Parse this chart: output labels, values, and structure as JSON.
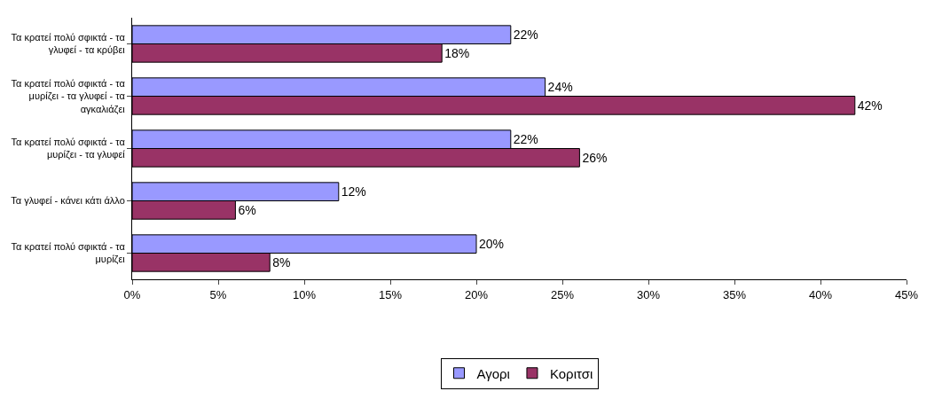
{
  "chart_data": {
    "type": "bar",
    "orientation": "horizontal",
    "categories": [
      "Τα κρατεί πολύ σφικτά - τα γλυφεί - τα κρύβει",
      "Τα κρατεί πολύ σφικτά - τα μυρίζει - τα γλυφεί - τα αγκαλιάζει",
      "Τα κρατεί πολύ σφικτά - τα μυρίζει - τα γλυφεί",
      "Τα γλυφεί - κάνει κάτι άλλο",
      "Τα κρατεί πολύ σφικτά - τα μυρίζει"
    ],
    "series": [
      {
        "name": "Αγορι",
        "color": "#9999ff",
        "values": [
          22,
          24,
          22,
          12,
          20
        ],
        "value_labels": [
          "22%",
          "24%",
          "22%",
          "12%",
          "20%"
        ]
      },
      {
        "name": "Κοριτσι",
        "color": "#993366",
        "values": [
          18,
          42,
          26,
          6,
          8
        ],
        "value_labels": [
          "18%",
          "42%",
          "26%",
          "6%",
          "8%"
        ]
      }
    ],
    "xlim": [
      0,
      45
    ],
    "xticks": [
      {
        "value": 0,
        "label": "0%"
      },
      {
        "value": 5,
        "label": "5%"
      },
      {
        "value": 10,
        "label": "10%"
      },
      {
        "value": 15,
        "label": "15%"
      },
      {
        "value": 20,
        "label": "20%"
      },
      {
        "value": 25,
        "label": "25%"
      },
      {
        "value": 30,
        "label": "30%"
      },
      {
        "value": 35,
        "label": "35%"
      },
      {
        "value": 40,
        "label": "40%"
      },
      {
        "value": 45,
        "label": "45%"
      }
    ],
    "grid": false,
    "legend": "bottom"
  }
}
